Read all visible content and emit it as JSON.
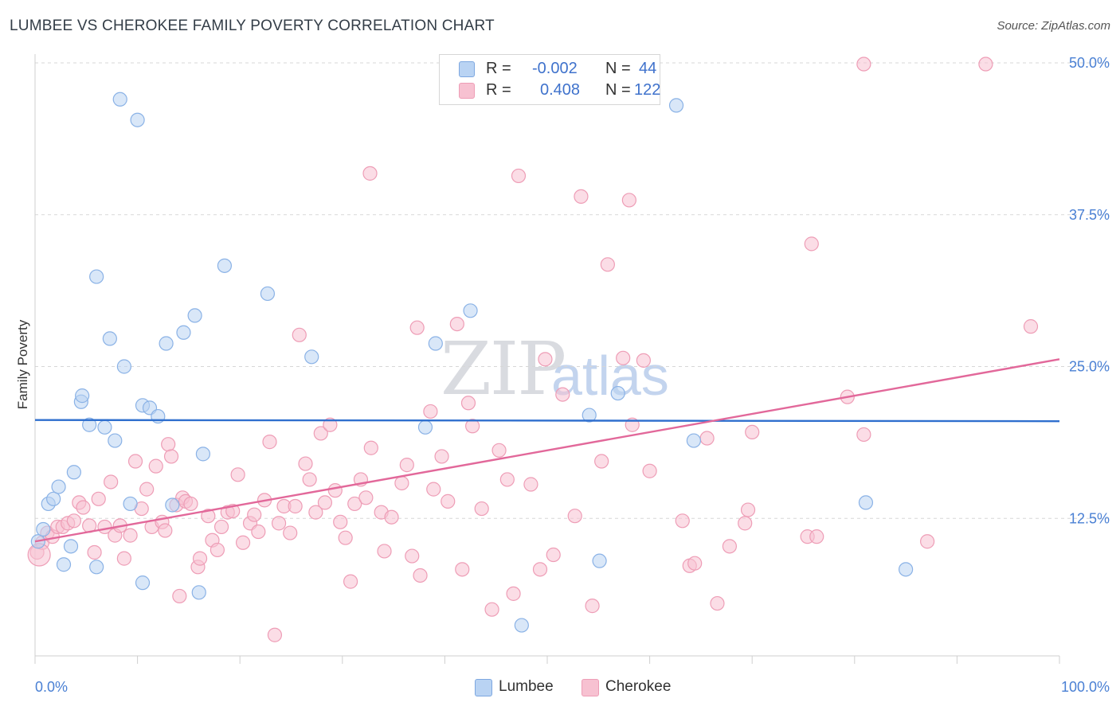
{
  "header": {
    "title": "LUMBEE VS CHEROKEE FAMILY POVERTY CORRELATION CHART",
    "source": "Source: ZipAtlas.com"
  },
  "watermark": {
    "zip": "ZIP",
    "atlas": "atlas"
  },
  "legend_top": {
    "rows": [
      {
        "r_label": "R =",
        "r_value": "-0.002",
        "n_label": "N =",
        "n_value": "44"
      },
      {
        "r_label": "R =",
        "r_value": "0.408",
        "n_label": "N =",
        "n_value": "122"
      }
    ]
  },
  "legend_bottom": {
    "items": [
      "Lumbee",
      "Cherokee"
    ]
  },
  "colors": {
    "lumbee_fill": "#b9d3f3",
    "lumbee_stroke": "#8ab2e6",
    "lumbee_line": "#2f6fce",
    "cherokee_fill": "#f7c1d1",
    "cherokee_stroke": "#ee9db6",
    "cherokee_line": "#e2689a",
    "tick_text": "#4a80d4"
  },
  "chart_data": {
    "type": "scatter",
    "title": "LUMBEE VS CHEROKEE FAMILY POVERTY CORRELATION CHART",
    "xlabel": "",
    "ylabel": "Family Poverty",
    "xlim": [
      0,
      100
    ],
    "ylim": [
      0,
      50
    ],
    "x_tick_labels": [
      "0.0%",
      "100.0%"
    ],
    "y_ticks": [
      12.5,
      25.0,
      37.5,
      50.0
    ],
    "y_tick_labels": [
      "12.5%",
      "25.0%",
      "37.5%",
      "50.0%"
    ],
    "grid": "horizontal dashed",
    "legend_position": "top-center",
    "series": [
      {
        "name": "Lumbee",
        "r": -0.002,
        "n": 44,
        "trend": [
          [
            0,
            20.6
          ],
          [
            100,
            20.5
          ]
        ],
        "points": [
          [
            0.3,
            10.6
          ],
          [
            0.8,
            11.6
          ],
          [
            1.3,
            13.7
          ],
          [
            1.8,
            14.1
          ],
          [
            2.3,
            15.1
          ],
          [
            2.8,
            8.7
          ],
          [
            3.5,
            10.2
          ],
          [
            3.8,
            16.3
          ],
          [
            4.5,
            22.1
          ],
          [
            4.6,
            22.6
          ],
          [
            5.3,
            20.2
          ],
          [
            6.0,
            8.5
          ],
          [
            6.0,
            32.4
          ],
          [
            6.8,
            20.0
          ],
          [
            7.3,
            27.3
          ],
          [
            7.8,
            18.9
          ],
          [
            8.3,
            47.0
          ],
          [
            8.7,
            25.0
          ],
          [
            9.3,
            13.7
          ],
          [
            10.0,
            45.3
          ],
          [
            10.5,
            7.2
          ],
          [
            10.5,
            21.8
          ],
          [
            11.2,
            21.6
          ],
          [
            12.0,
            20.9
          ],
          [
            12.8,
            26.9
          ],
          [
            13.4,
            13.6
          ],
          [
            14.5,
            27.8
          ],
          [
            15.6,
            29.2
          ],
          [
            16.0,
            6.4
          ],
          [
            16.4,
            17.8
          ],
          [
            18.5,
            33.3
          ],
          [
            22.7,
            31.0
          ],
          [
            27.0,
            25.8
          ],
          [
            38.1,
            20.0
          ],
          [
            39.1,
            26.9
          ],
          [
            42.5,
            29.6
          ],
          [
            47.5,
            3.7
          ],
          [
            54.1,
            21.0
          ],
          [
            55.1,
            9.0
          ],
          [
            56.9,
            22.8
          ],
          [
            62.6,
            46.5
          ],
          [
            64.3,
            18.9
          ],
          [
            81.1,
            13.8
          ],
          [
            85.0,
            8.3
          ]
        ]
      },
      {
        "name": "Cherokee",
        "r": 0.408,
        "n": 122,
        "trend": [
          [
            0,
            10.6
          ],
          [
            100,
            25.6
          ]
        ],
        "points": [
          [
            0.2,
            9.7
          ],
          [
            0.7,
            10.5
          ],
          [
            1.2,
            11.3
          ],
          [
            1.7,
            11.0
          ],
          [
            2.2,
            11.8
          ],
          [
            2.7,
            11.8
          ],
          [
            3.2,
            12.1
          ],
          [
            3.8,
            12.3
          ],
          [
            4.3,
            13.8
          ],
          [
            4.7,
            13.4
          ],
          [
            5.3,
            11.9
          ],
          [
            5.8,
            9.7
          ],
          [
            6.2,
            14.1
          ],
          [
            6.8,
            11.8
          ],
          [
            7.4,
            15.5
          ],
          [
            7.8,
            11.1
          ],
          [
            8.3,
            11.9
          ],
          [
            8.7,
            9.2
          ],
          [
            9.3,
            11.1
          ],
          [
            9.8,
            17.2
          ],
          [
            10.4,
            13.3
          ],
          [
            10.9,
            14.9
          ],
          [
            11.4,
            11.8
          ],
          [
            11.8,
            16.8
          ],
          [
            12.4,
            12.2
          ],
          [
            12.7,
            11.5
          ],
          [
            13.0,
            18.6
          ],
          [
            13.3,
            17.6
          ],
          [
            13.8,
            13.6
          ],
          [
            14.1,
            6.1
          ],
          [
            14.4,
            14.2
          ],
          [
            14.7,
            13.9
          ],
          [
            15.2,
            13.7
          ],
          [
            15.9,
            8.5
          ],
          [
            16.1,
            9.2
          ],
          [
            16.9,
            12.7
          ],
          [
            17.3,
            10.7
          ],
          [
            17.8,
            9.9
          ],
          [
            18.2,
            11.8
          ],
          [
            18.8,
            13.0
          ],
          [
            19.3,
            13.1
          ],
          [
            19.8,
            16.1
          ],
          [
            20.3,
            10.5
          ],
          [
            21.0,
            12.1
          ],
          [
            21.4,
            12.8
          ],
          [
            21.8,
            11.4
          ],
          [
            22.4,
            14.0
          ],
          [
            22.9,
            18.8
          ],
          [
            23.4,
            2.9
          ],
          [
            23.8,
            12.1
          ],
          [
            24.3,
            13.5
          ],
          [
            24.9,
            11.3
          ],
          [
            25.4,
            13.5
          ],
          [
            25.8,
            27.6
          ],
          [
            26.4,
            17.0
          ],
          [
            26.8,
            15.7
          ],
          [
            27.4,
            13.0
          ],
          [
            27.9,
            19.5
          ],
          [
            28.3,
            13.8
          ],
          [
            28.8,
            20.2
          ],
          [
            29.3,
            14.8
          ],
          [
            29.8,
            12.2
          ],
          [
            30.3,
            10.9
          ],
          [
            30.8,
            7.3
          ],
          [
            31.2,
            13.7
          ],
          [
            31.8,
            15.7
          ],
          [
            32.3,
            14.2
          ],
          [
            32.7,
            40.9
          ],
          [
            32.8,
            18.3
          ],
          [
            33.8,
            13.0
          ],
          [
            34.1,
            9.8
          ],
          [
            34.8,
            12.6
          ],
          [
            35.8,
            15.4
          ],
          [
            36.3,
            16.9
          ],
          [
            36.8,
            9.4
          ],
          [
            37.3,
            28.2
          ],
          [
            37.6,
            7.8
          ],
          [
            38.6,
            21.3
          ],
          [
            38.9,
            14.9
          ],
          [
            39.7,
            17.6
          ],
          [
            40.3,
            13.9
          ],
          [
            41.2,
            28.5
          ],
          [
            41.7,
            8.3
          ],
          [
            42.3,
            22.0
          ],
          [
            42.7,
            20.1
          ],
          [
            43.6,
            13.3
          ],
          [
            44.6,
            5.0
          ],
          [
            45.3,
            18.1
          ],
          [
            46.1,
            15.7
          ],
          [
            46.7,
            6.3
          ],
          [
            47.2,
            40.7
          ],
          [
            48.4,
            15.3
          ],
          [
            49.3,
            8.3
          ],
          [
            49.8,
            25.6
          ],
          [
            50.6,
            9.5
          ],
          [
            51.5,
            22.7
          ],
          [
            52.7,
            12.7
          ],
          [
            53.3,
            39.0
          ],
          [
            54.4,
            5.3
          ],
          [
            55.3,
            17.2
          ],
          [
            55.9,
            33.4
          ],
          [
            57.4,
            25.7
          ],
          [
            58.0,
            38.7
          ],
          [
            58.3,
            20.2
          ],
          [
            59.4,
            25.5
          ],
          [
            60.0,
            16.4
          ],
          [
            63.2,
            12.3
          ],
          [
            63.9,
            8.6
          ],
          [
            64.4,
            8.8
          ],
          [
            65.6,
            19.1
          ],
          [
            66.6,
            5.5
          ],
          [
            67.8,
            10.2
          ],
          [
            69.3,
            12.1
          ],
          [
            69.6,
            13.2
          ],
          [
            70.0,
            19.6
          ],
          [
            75.4,
            11.0
          ],
          [
            75.8,
            35.1
          ],
          [
            76.3,
            11.0
          ],
          [
            79.3,
            22.5
          ],
          [
            80.9,
            19.4
          ],
          [
            80.9,
            49.9
          ],
          [
            87.1,
            10.6
          ],
          [
            92.8,
            49.9
          ],
          [
            97.2,
            28.3
          ]
        ]
      }
    ]
  }
}
